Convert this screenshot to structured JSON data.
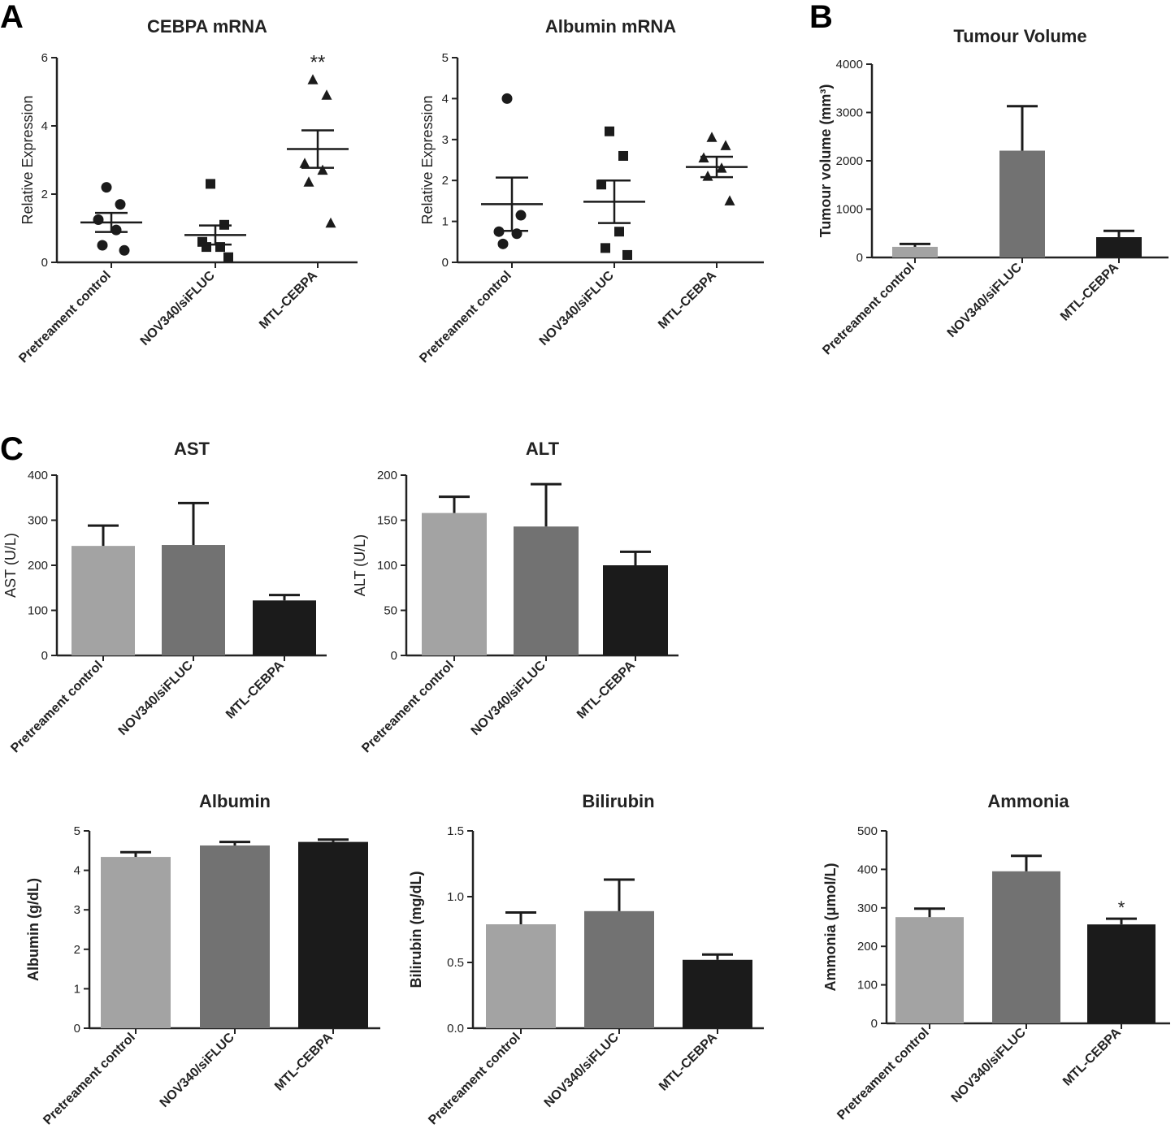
{
  "panel_labels": {
    "a": "A",
    "b": "B",
    "c": "C"
  },
  "colors": {
    "light": "#a3a3a3",
    "mid": "#727272",
    "dark": "#1b1b1b",
    "axis": "#222222"
  },
  "chart_data": [
    {
      "id": "cebpa",
      "type": "scatter",
      "title": "CEBPA mRNA",
      "ylabel": "Relative Expression",
      "ylim": [
        0,
        6
      ],
      "yticks": [
        0,
        2,
        4,
        6
      ],
      "categories": [
        "Pretreament control",
        "NOV340/siFLUC",
        "MTL-CEBPA"
      ],
      "markers": [
        "circle",
        "square",
        "triangle"
      ],
      "points": [
        [
          2.2,
          1.7,
          1.25,
          0.95,
          0.5,
          0.35
        ],
        [
          2.3,
          1.1,
          0.6,
          0.45,
          0.45,
          0.15
        ],
        [
          5.35,
          4.9,
          2.9,
          2.7,
          2.35,
          1.15
        ]
      ],
      "mean": [
        1.17,
        0.8,
        3.32
      ],
      "sem": [
        0.28,
        0.28,
        0.55
      ],
      "annotations": [
        "",
        "",
        "**"
      ]
    },
    {
      "id": "albumin_mrna",
      "type": "scatter",
      "title": "Albumin mRNA",
      "ylabel": "Relative Expression",
      "ylim": [
        0,
        5
      ],
      "yticks": [
        0,
        1,
        2,
        3,
        4,
        5
      ],
      "categories": [
        "Pretreament control",
        "NOV340/siFLUC",
        "MTL-CEBPA"
      ],
      "markers": [
        "circle",
        "square",
        "triangle"
      ],
      "points": [
        [
          4.0,
          1.15,
          0.75,
          0.7,
          0.45
        ],
        [
          3.2,
          2.6,
          1.9,
          0.75,
          0.35,
          0.18
        ],
        [
          3.05,
          2.85,
          2.55,
          2.3,
          2.1,
          1.5
        ]
      ],
      "mean": [
        1.42,
        1.48,
        2.33
      ],
      "sem": [
        0.65,
        0.52,
        0.25
      ],
      "annotations": [
        "",
        "",
        ""
      ]
    },
    {
      "id": "tumour_volume",
      "type": "bar",
      "title": "Tumour Volume",
      "ylabel": "Tumour volume (mm³)",
      "ylim": [
        0,
        4000
      ],
      "yticks": [
        0,
        1000,
        2000,
        3000,
        4000
      ],
      "categories": [
        "Pretreament control",
        "NOV340/siFLUC",
        "MTL-CEBPA"
      ],
      "values": [
        220,
        2210,
        420
      ],
      "errors": [
        60,
        920,
        130
      ],
      "annotations": [
        "",
        "",
        ""
      ]
    },
    {
      "id": "ast",
      "type": "bar",
      "title": "AST",
      "ylabel": "AST (U/L)",
      "ylim": [
        0,
        400
      ],
      "yticks": [
        0,
        100,
        200,
        300,
        400
      ],
      "categories": [
        "Pretreament control",
        "NOV340/siFLUC",
        "MTL-CEBPA"
      ],
      "values": [
        243,
        245,
        122
      ],
      "errors": [
        45,
        93,
        12
      ],
      "annotations": [
        "",
        "",
        ""
      ]
    },
    {
      "id": "alt",
      "type": "bar",
      "title": "ALT",
      "ylabel": "ALT (U/L)",
      "ylim": [
        0,
        200
      ],
      "yticks": [
        0,
        50,
        100,
        150,
        200
      ],
      "categories": [
        "Pretreament control",
        "NOV340/siFLUC",
        "MTL-CEBPA"
      ],
      "values": [
        158,
        143,
        100
      ],
      "errors": [
        18,
        47,
        15
      ],
      "annotations": [
        "",
        "",
        ""
      ]
    },
    {
      "id": "albumin",
      "type": "bar",
      "title": "Albumin",
      "ylabel": "Albumin (g/dL)",
      "ylim": [
        0,
        5
      ],
      "yticks": [
        0,
        1,
        2,
        3,
        4,
        5
      ],
      "categories": [
        "Pretreament control",
        "NOV340/siFLUC",
        "MTL-CEBPA"
      ],
      "values": [
        4.34,
        4.63,
        4.72
      ],
      "errors": [
        0.12,
        0.09,
        0.06
      ],
      "annotations": [
        "",
        "",
        ""
      ]
    },
    {
      "id": "bilirubin",
      "type": "bar",
      "title": "Bilirubin",
      "ylabel": "Bilirubin (mg/dL)",
      "ylim": [
        0,
        1.5
      ],
      "yticks": [
        0.0,
        0.5,
        1.0,
        1.5
      ],
      "ytick_labels": [
        "0.0",
        "0.5",
        "1.0",
        "1.5"
      ],
      "categories": [
        "Pretreament control",
        "NOV340/siFLUC",
        "MTL-CEBPA"
      ],
      "values": [
        0.79,
        0.89,
        0.52
      ],
      "errors": [
        0.09,
        0.24,
        0.04
      ],
      "annotations": [
        "",
        "",
        ""
      ]
    },
    {
      "id": "ammonia",
      "type": "bar",
      "title": "Ammonia",
      "ylabel": "Ammonia (μmol/L)",
      "ylim": [
        0,
        500
      ],
      "yticks": [
        0,
        100,
        200,
        300,
        400,
        500
      ],
      "categories": [
        "Pretreament control",
        "NOV340/siFLUC",
        "MTL-CEBPA"
      ],
      "values": [
        276,
        395,
        257
      ],
      "errors": [
        22,
        40,
        15
      ],
      "annotations": [
        "",
        "",
        "*"
      ]
    }
  ]
}
